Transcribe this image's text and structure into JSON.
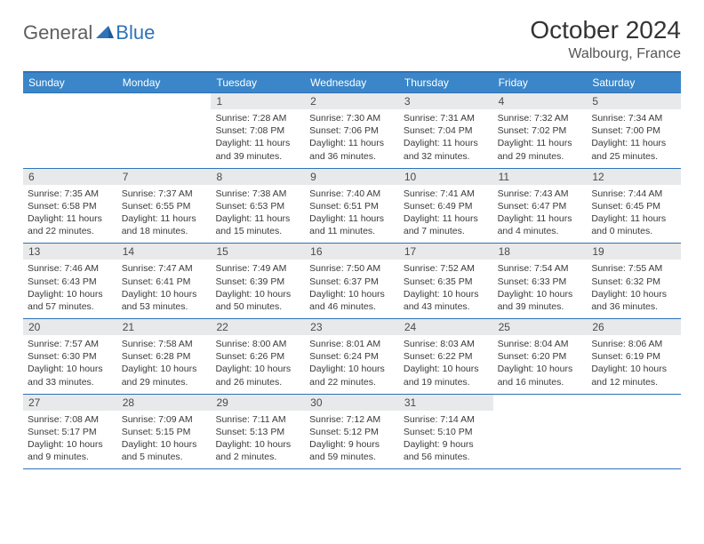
{
  "brand": {
    "general": "General",
    "blue": "Blue"
  },
  "title": "October 2024",
  "location": "Walbourg, France",
  "weekdays": [
    "Sunday",
    "Monday",
    "Tuesday",
    "Wednesday",
    "Thursday",
    "Friday",
    "Saturday"
  ],
  "colors": {
    "header_bg": "#3a86c8",
    "border": "#2f72b8",
    "daynum_bg": "#e8e9ea",
    "text": "#3a3a3a"
  },
  "weeks": [
    [
      {
        "n": "",
        "t": ""
      },
      {
        "n": "",
        "t": ""
      },
      {
        "n": "1",
        "t": "Sunrise: 7:28 AM\nSunset: 7:08 PM\nDaylight: 11 hours and 39 minutes."
      },
      {
        "n": "2",
        "t": "Sunrise: 7:30 AM\nSunset: 7:06 PM\nDaylight: 11 hours and 36 minutes."
      },
      {
        "n": "3",
        "t": "Sunrise: 7:31 AM\nSunset: 7:04 PM\nDaylight: 11 hours and 32 minutes."
      },
      {
        "n": "4",
        "t": "Sunrise: 7:32 AM\nSunset: 7:02 PM\nDaylight: 11 hours and 29 minutes."
      },
      {
        "n": "5",
        "t": "Sunrise: 7:34 AM\nSunset: 7:00 PM\nDaylight: 11 hours and 25 minutes."
      }
    ],
    [
      {
        "n": "6",
        "t": "Sunrise: 7:35 AM\nSunset: 6:58 PM\nDaylight: 11 hours and 22 minutes."
      },
      {
        "n": "7",
        "t": "Sunrise: 7:37 AM\nSunset: 6:55 PM\nDaylight: 11 hours and 18 minutes."
      },
      {
        "n": "8",
        "t": "Sunrise: 7:38 AM\nSunset: 6:53 PM\nDaylight: 11 hours and 15 minutes."
      },
      {
        "n": "9",
        "t": "Sunrise: 7:40 AM\nSunset: 6:51 PM\nDaylight: 11 hours and 11 minutes."
      },
      {
        "n": "10",
        "t": "Sunrise: 7:41 AM\nSunset: 6:49 PM\nDaylight: 11 hours and 7 minutes."
      },
      {
        "n": "11",
        "t": "Sunrise: 7:43 AM\nSunset: 6:47 PM\nDaylight: 11 hours and 4 minutes."
      },
      {
        "n": "12",
        "t": "Sunrise: 7:44 AM\nSunset: 6:45 PM\nDaylight: 11 hours and 0 minutes."
      }
    ],
    [
      {
        "n": "13",
        "t": "Sunrise: 7:46 AM\nSunset: 6:43 PM\nDaylight: 10 hours and 57 minutes."
      },
      {
        "n": "14",
        "t": "Sunrise: 7:47 AM\nSunset: 6:41 PM\nDaylight: 10 hours and 53 minutes."
      },
      {
        "n": "15",
        "t": "Sunrise: 7:49 AM\nSunset: 6:39 PM\nDaylight: 10 hours and 50 minutes."
      },
      {
        "n": "16",
        "t": "Sunrise: 7:50 AM\nSunset: 6:37 PM\nDaylight: 10 hours and 46 minutes."
      },
      {
        "n": "17",
        "t": "Sunrise: 7:52 AM\nSunset: 6:35 PM\nDaylight: 10 hours and 43 minutes."
      },
      {
        "n": "18",
        "t": "Sunrise: 7:54 AM\nSunset: 6:33 PM\nDaylight: 10 hours and 39 minutes."
      },
      {
        "n": "19",
        "t": "Sunrise: 7:55 AM\nSunset: 6:32 PM\nDaylight: 10 hours and 36 minutes."
      }
    ],
    [
      {
        "n": "20",
        "t": "Sunrise: 7:57 AM\nSunset: 6:30 PM\nDaylight: 10 hours and 33 minutes."
      },
      {
        "n": "21",
        "t": "Sunrise: 7:58 AM\nSunset: 6:28 PM\nDaylight: 10 hours and 29 minutes."
      },
      {
        "n": "22",
        "t": "Sunrise: 8:00 AM\nSunset: 6:26 PM\nDaylight: 10 hours and 26 minutes."
      },
      {
        "n": "23",
        "t": "Sunrise: 8:01 AM\nSunset: 6:24 PM\nDaylight: 10 hours and 22 minutes."
      },
      {
        "n": "24",
        "t": "Sunrise: 8:03 AM\nSunset: 6:22 PM\nDaylight: 10 hours and 19 minutes."
      },
      {
        "n": "25",
        "t": "Sunrise: 8:04 AM\nSunset: 6:20 PM\nDaylight: 10 hours and 16 minutes."
      },
      {
        "n": "26",
        "t": "Sunrise: 8:06 AM\nSunset: 6:19 PM\nDaylight: 10 hours and 12 minutes."
      }
    ],
    [
      {
        "n": "27",
        "t": "Sunrise: 7:08 AM\nSunset: 5:17 PM\nDaylight: 10 hours and 9 minutes."
      },
      {
        "n": "28",
        "t": "Sunrise: 7:09 AM\nSunset: 5:15 PM\nDaylight: 10 hours and 5 minutes."
      },
      {
        "n": "29",
        "t": "Sunrise: 7:11 AM\nSunset: 5:13 PM\nDaylight: 10 hours and 2 minutes."
      },
      {
        "n": "30",
        "t": "Sunrise: 7:12 AM\nSunset: 5:12 PM\nDaylight: 9 hours and 59 minutes."
      },
      {
        "n": "31",
        "t": "Sunrise: 7:14 AM\nSunset: 5:10 PM\nDaylight: 9 hours and 56 minutes."
      },
      {
        "n": "",
        "t": ""
      },
      {
        "n": "",
        "t": ""
      }
    ]
  ]
}
